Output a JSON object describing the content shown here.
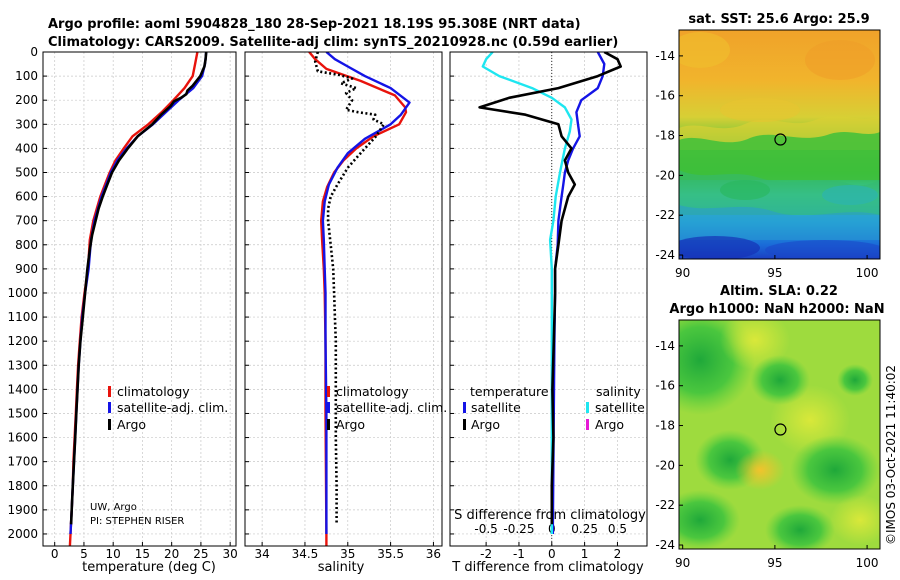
{
  "header": {
    "title_line1": "Argo profile: aoml 5904828_180 28-Sep-2021 18.19S 95.308E (NRT data)",
    "title_line2": "Climatology: CARS2009. Satellite-adj clim: synTS_20210928.nc (0.59d earlier)"
  },
  "credit": {
    "line1": "UW, Argo",
    "line2": "PI: STEPHEN RISER"
  },
  "timestamp": "©IMOS 03-Oct-2021 11:40:02",
  "colors": {
    "climatology": "#e8130c",
    "satellite": "#1414e6",
    "argo": "#000000",
    "sat_salinity": "#1ee6f0",
    "argo_salinity": "#e619d6"
  },
  "chart_data": [
    {
      "type": "line",
      "name": "temperature-profile",
      "xlabel": "temperature (deg C)",
      "ylabel": "",
      "xlim": [
        -2,
        31
      ],
      "ylim": [
        0,
        2050
      ],
      "xticks": [
        0,
        5,
        10,
        15,
        20,
        25,
        30
      ],
      "yticks": [
        0,
        100,
        200,
        300,
        400,
        500,
        600,
        700,
        800,
        900,
        1000,
        1100,
        1200,
        1300,
        1400,
        1500,
        1600,
        1700,
        1800,
        1900,
        2000
      ],
      "grid": true,
      "legend": [
        "climatology",
        "satellite-adj. clim.",
        "Argo"
      ],
      "series": [
        {
          "name": "climatology",
          "color": "#e8130c",
          "points": [
            [
              24.4,
              0
            ],
            [
              24.0,
              50
            ],
            [
              23.6,
              100
            ],
            [
              22.2,
              150
            ],
            [
              20.3,
              200
            ],
            [
              18.3,
              250
            ],
            [
              16.0,
              300
            ],
            [
              13.3,
              350
            ],
            [
              11.8,
              400
            ],
            [
              10.4,
              450
            ],
            [
              9.4,
              500
            ],
            [
              8.6,
              550
            ],
            [
              7.8,
              600
            ],
            [
              7.2,
              650
            ],
            [
              6.6,
              700
            ],
            [
              6.0,
              780
            ],
            [
              5.7,
              900
            ],
            [
              5.1,
              1000
            ],
            [
              4.6,
              1100
            ],
            [
              4.3,
              1200
            ],
            [
              4.0,
              1300
            ],
            [
              3.8,
              1400
            ],
            [
              3.6,
              1500
            ],
            [
              3.4,
              1600
            ],
            [
              3.2,
              1700
            ],
            [
              3.1,
              1800
            ],
            [
              2.9,
              1900
            ],
            [
              2.7,
              2000
            ],
            [
              2.6,
              2050
            ]
          ]
        },
        {
          "name": "satellite-adj. clim.",
          "color": "#1414e6",
          "points": [
            [
              25.9,
              0
            ],
            [
              25.7,
              50
            ],
            [
              25.2,
              100
            ],
            [
              23.7,
              150
            ],
            [
              21.2,
              200
            ],
            [
              19.0,
              250
            ],
            [
              16.8,
              300
            ],
            [
              14.2,
              350
            ],
            [
              12.3,
              400
            ],
            [
              10.7,
              450
            ],
            [
              9.6,
              500
            ],
            [
              8.8,
              550
            ],
            [
              8.0,
              600
            ],
            [
              7.4,
              650
            ],
            [
              6.8,
              700
            ],
            [
              6.2,
              780
            ],
            [
              5.8,
              900
            ],
            [
              5.2,
              1000
            ],
            [
              4.7,
              1100
            ],
            [
              4.4,
              1200
            ],
            [
              4.1,
              1300
            ],
            [
              3.9,
              1400
            ],
            [
              3.7,
              1500
            ],
            [
              3.5,
              1600
            ],
            [
              3.3,
              1700
            ],
            [
              3.1,
              1800
            ],
            [
              2.9,
              1900
            ],
            [
              2.7,
              2000
            ]
          ]
        },
        {
          "name": "Argo",
          "color": "#000000",
          "points": [
            [
              25.9,
              0
            ],
            [
              25.8,
              30
            ],
            [
              25.6,
              60
            ],
            [
              24.9,
              100
            ],
            [
              23.6,
              140
            ],
            [
              22.7,
              160
            ],
            [
              22.5,
              175
            ],
            [
              21.6,
              190
            ],
            [
              20.4,
              205
            ],
            [
              19.8,
              225
            ],
            [
              18.2,
              260
            ],
            [
              16.7,
              300
            ],
            [
              14.2,
              350
            ],
            [
              12.5,
              400
            ],
            [
              11.0,
              450
            ],
            [
              9.8,
              500
            ],
            [
              9.0,
              550
            ],
            [
              8.2,
              600
            ],
            [
              7.5,
              650
            ],
            [
              7.0,
              700
            ],
            [
              6.4,
              760
            ],
            [
              6.0,
              820
            ],
            [
              5.6,
              900
            ],
            [
              5.2,
              1000
            ],
            [
              4.8,
              1100
            ],
            [
              4.4,
              1200
            ],
            [
              4.1,
              1300
            ],
            [
              3.9,
              1400
            ],
            [
              3.7,
              1500
            ],
            [
              3.5,
              1600
            ],
            [
              3.3,
              1700
            ],
            [
              3.1,
              1800
            ],
            [
              2.9,
              1900
            ],
            [
              2.8,
              1960
            ]
          ]
        }
      ]
    },
    {
      "type": "line",
      "name": "salinity-profile",
      "xlabel": "salinity",
      "ylabel": "",
      "xlim": [
        33.8,
        36.1
      ],
      "ylim": [
        0,
        2050
      ],
      "xticks": [
        34,
        34.5,
        35,
        35.5,
        36
      ],
      "grid": true,
      "legend": [
        "climatology",
        "satellite-adj. clim.",
        "Argo"
      ],
      "series": [
        {
          "name": "climatology",
          "color": "#e8130c",
          "points": [
            [
              34.55,
              0
            ],
            [
              34.62,
              30
            ],
            [
              34.75,
              70
            ],
            [
              35.15,
              120
            ],
            [
              35.55,
              180
            ],
            [
              35.67,
              230
            ],
            [
              35.68,
              250
            ],
            [
              35.6,
              300
            ],
            [
              35.3,
              350
            ],
            [
              35.1,
              400
            ],
            [
              34.95,
              450
            ],
            [
              34.84,
              500
            ],
            [
              34.76,
              560
            ],
            [
              34.71,
              620
            ],
            [
              34.69,
              700
            ],
            [
              34.7,
              780
            ],
            [
              34.72,
              900
            ],
            [
              34.73,
              1000
            ],
            [
              34.74,
              1200
            ],
            [
              34.74,
              1500
            ],
            [
              34.75,
              2000
            ],
            [
              34.75,
              2050
            ]
          ]
        },
        {
          "name": "satellite-adj. clim.",
          "color": "#1414e6",
          "points": [
            [
              34.75,
              0
            ],
            [
              34.85,
              30
            ],
            [
              35.0,
              60
            ],
            [
              35.2,
              100
            ],
            [
              35.5,
              150
            ],
            [
              35.72,
              210
            ],
            [
              35.62,
              260
            ],
            [
              35.5,
              300
            ],
            [
              35.2,
              360
            ],
            [
              35.0,
              420
            ],
            [
              34.88,
              480
            ],
            [
              34.78,
              550
            ],
            [
              34.73,
              620
            ],
            [
              34.71,
              700
            ],
            [
              34.72,
              780
            ],
            [
              34.73,
              900
            ],
            [
              34.74,
              1000
            ],
            [
              34.74,
              1200
            ],
            [
              34.75,
              1500
            ],
            [
              34.75,
              2000
            ]
          ]
        },
        {
          "name": "Argo",
          "color": "#000000",
          "points": [
            [
              34.65,
              0
            ],
            [
              34.62,
              40
            ],
            [
              34.65,
              80
            ],
            [
              34.9,
              95
            ],
            [
              35.05,
              110
            ],
            [
              34.92,
              130
            ],
            [
              35.1,
              150
            ],
            [
              34.98,
              170
            ],
            [
              35.05,
              200
            ],
            [
              34.98,
              240
            ],
            [
              35.12,
              250
            ],
            [
              35.32,
              260
            ],
            [
              35.3,
              280
            ],
            [
              35.42,
              300
            ],
            [
              35.33,
              350
            ],
            [
              35.15,
              420
            ],
            [
              35.0,
              480
            ],
            [
              34.88,
              550
            ],
            [
              34.8,
              600
            ],
            [
              34.77,
              650
            ],
            [
              34.77,
              700
            ],
            [
              34.8,
              800
            ],
            [
              34.83,
              900
            ],
            [
              34.84,
              1000
            ],
            [
              34.85,
              1100
            ],
            [
              34.86,
              1200
            ],
            [
              34.86,
              1400
            ],
            [
              34.86,
              1600
            ],
            [
              34.87,
              1800
            ],
            [
              34.87,
              1960
            ]
          ]
        }
      ]
    },
    {
      "type": "line",
      "name": "difference-profile",
      "xlabel": "T difference from climatology",
      "xlabel_top": "S difference from climatology",
      "xlim": [
        -3.1,
        2.9
      ],
      "xticks": [
        -2,
        -1,
        0,
        1,
        2
      ],
      "xticks_s_labels": [
        "-0.5",
        "-0.25",
        "0",
        "0.25",
        "0.5"
      ],
      "xticks_s_positions": [
        -2,
        -1,
        0,
        1,
        2
      ],
      "grid": true,
      "legend_left_title": "temperature",
      "legend_right_title": "salinity",
      "legend": [
        "satellite",
        "Argo",
        "satellite",
        "Argo"
      ],
      "series": [
        {
          "name": "satellite",
          "group": "temperature",
          "color": "#1414e6",
          "points": [
            [
              1.4,
              0
            ],
            [
              1.6,
              50
            ],
            [
              1.55,
              100
            ],
            [
              1.4,
              150
            ],
            [
              0.9,
              200
            ],
            [
              0.75,
              250
            ],
            [
              0.8,
              300
            ],
            [
              0.85,
              350
            ],
            [
              0.65,
              400
            ],
            [
              0.5,
              450
            ],
            [
              0.4,
              500
            ],
            [
              0.35,
              550
            ],
            [
              0.3,
              600
            ],
            [
              0.25,
              650
            ],
            [
              0.2,
              700
            ],
            [
              0.18,
              800
            ],
            [
              0.1,
              900
            ],
            [
              0.1,
              1000
            ],
            [
              0.08,
              1200
            ],
            [
              0.06,
              1500
            ],
            [
              0.03,
              2000
            ]
          ]
        },
        {
          "name": "satellite",
          "group": "salinity",
          "color": "#1ee6f0",
          "points": [
            [
              -1.8,
              0
            ],
            [
              -2.0,
              30
            ],
            [
              -2.1,
              60
            ],
            [
              -1.6,
              100
            ],
            [
              -0.6,
              150
            ],
            [
              0.0,
              190
            ],
            [
              0.4,
              230
            ],
            [
              0.6,
              280
            ],
            [
              0.55,
              330
            ],
            [
              0.4,
              400
            ],
            [
              0.25,
              500
            ],
            [
              0.12,
              600
            ],
            [
              0.05,
              700
            ],
            [
              -0.05,
              780
            ],
            [
              0.0,
              900
            ],
            [
              0.0,
              1000
            ],
            [
              0.0,
              1500
            ],
            [
              0.0,
              2000
            ]
          ]
        },
        {
          "name": "Argo",
          "group": "temperature",
          "color": "#000000",
          "points": [
            [
              1.6,
              0
            ],
            [
              2.0,
              30
            ],
            [
              2.1,
              60
            ],
            [
              1.4,
              100
            ],
            [
              0.2,
              150
            ],
            [
              -1.3,
              190
            ],
            [
              -2.2,
              230
            ],
            [
              -0.8,
              260
            ],
            [
              0.2,
              300
            ],
            [
              0.3,
              350
            ],
            [
              0.6,
              400
            ],
            [
              0.4,
              450
            ],
            [
              0.5,
              500
            ],
            [
              0.7,
              550
            ],
            [
              0.5,
              600
            ],
            [
              0.3,
              700
            ],
            [
              0.2,
              800
            ],
            [
              0.1,
              900
            ],
            [
              0.1,
              1000
            ],
            [
              0.06,
              1200
            ],
            [
              0.02,
              1400
            ],
            [
              0.05,
              1600
            ],
            [
              0.0,
              1800
            ],
            [
              0.0,
              1960
            ]
          ]
        }
      ]
    },
    {
      "type": "heatmap",
      "name": "sst-map",
      "title": "sat. SST: 25.6 Argo: 25.9",
      "xlim": [
        89.8,
        100.7
      ],
      "ylim": [
        -24.2,
        -12.7
      ],
      "xticks": [
        90,
        95,
        100
      ],
      "yticks": [
        -14,
        -16,
        -18,
        -20,
        -22,
        -24
      ],
      "marker": {
        "lon": 95.3,
        "lat": -18.2
      }
    },
    {
      "type": "heatmap",
      "name": "sla-map",
      "title": "Altim. SLA: 0.22",
      "subtitle": "Argo h1000: NaN h2000: NaN",
      "xlim": [
        89.8,
        100.7
      ],
      "ylim": [
        -24.2,
        -12.7
      ],
      "xticks": [
        90,
        95,
        100
      ],
      "yticks": [
        -14,
        -16,
        -18,
        -20,
        -22,
        -24
      ],
      "marker": {
        "lon": 95.3,
        "lat": -18.2
      }
    }
  ]
}
